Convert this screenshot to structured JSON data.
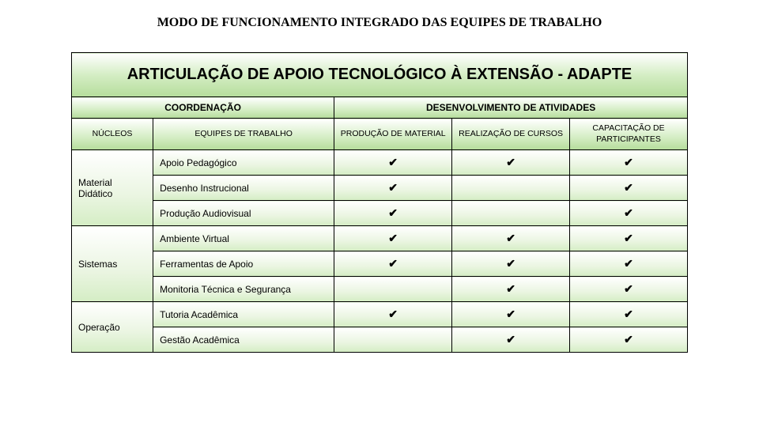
{
  "title": "MODO DE FUNCIONAMENTO INTEGRADO DAS EQUIPES DE TRABALHO",
  "table": {
    "main_header": "ARTICULAÇÃO DE APOIO TECNOLÓGICO À EXTENSÃO - ADAPTE",
    "coord_header": "COORDENAÇÃO",
    "activ_header": "DESENVOLVIMENTO DE ATIVIDADES",
    "nucleos_header": "NÚCLEOS",
    "equipes_header": "EQUIPES DE TRABALHO",
    "activity_cols": [
      "PRODUÇÃO DE MATERIAL",
      "REALIZAÇÃO DE CURSOS",
      "CAPACITAÇÃO DE PARTICIPANTES"
    ],
    "nucleos": [
      "Material Didático",
      "Sistemas",
      "Operação"
    ],
    "equipes": [
      "Apoio Pedagógico",
      "Desenho Instrucional",
      "Produção Audiovisual",
      "Ambiente Virtual",
      "Ferramentas de Apoio",
      "Monitoria Técnica e Segurança",
      "Tutoria Acadêmica",
      "Gestão Acadêmica"
    ],
    "checks": [
      [
        true,
        true,
        true
      ],
      [
        true,
        false,
        true
      ],
      [
        true,
        false,
        true
      ],
      [
        true,
        true,
        true
      ],
      [
        true,
        true,
        true
      ],
      [
        false,
        true,
        true
      ],
      [
        true,
        true,
        true
      ],
      [
        false,
        true,
        true
      ]
    ],
    "check_glyph": "✔",
    "colors": {
      "border": "#000000",
      "header_grad_top": "#ffffff",
      "header_grad_bottom": "#b5dd9b",
      "body_grad_top": "#ffffff",
      "body_grad_bottom": "#d4edc4",
      "text": "#000000"
    },
    "typography": {
      "title_size_pt": 12,
      "title_family": "Georgia, serif",
      "main_header_size_pt": 15,
      "sub_header_size_pt": 9,
      "col_header_size_pt": 8,
      "body_size_pt": 9
    }
  }
}
